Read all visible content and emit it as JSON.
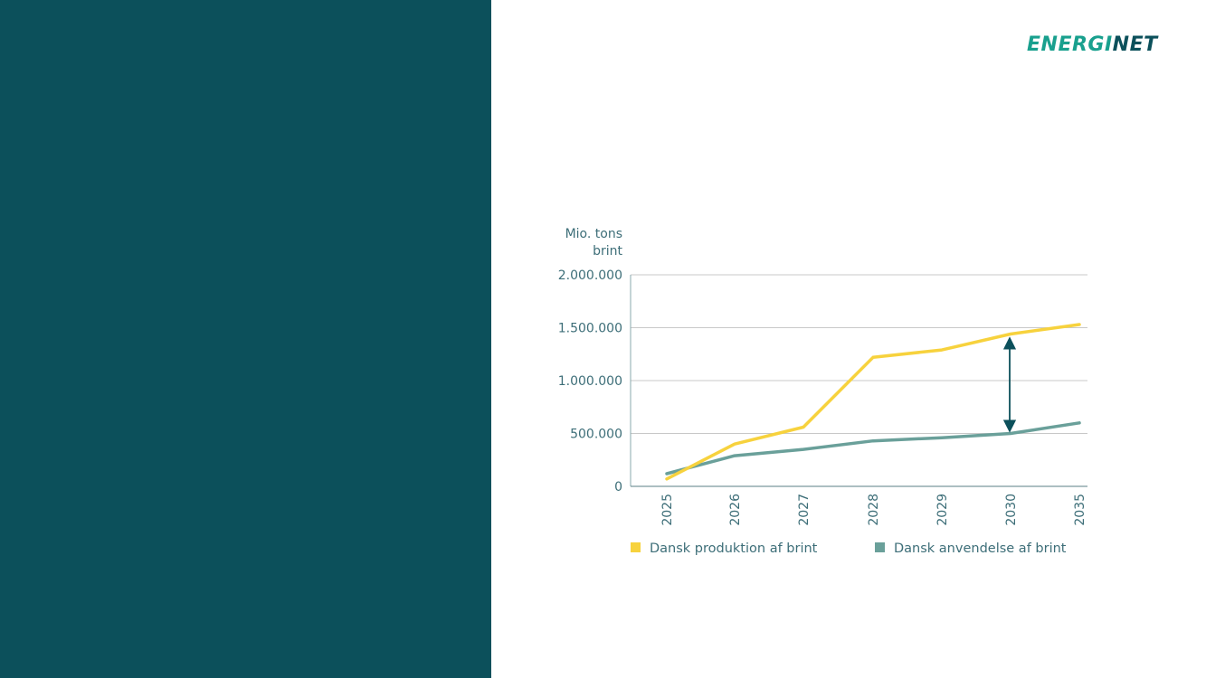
{
  "brand": {
    "logo_text_a": "ENERGI",
    "logo_text_b": "NET"
  },
  "colors": {
    "panel": "#0c505b",
    "accent": "#19a08e",
    "production": "#f7d23d",
    "usage": "#6aa09a",
    "arrow": "#0c505b",
    "grid": "#c8c8c8",
    "text": "#3d6e78"
  },
  "chart_data": {
    "type": "line",
    "title": "",
    "ylabel_line1": "Mio. tons",
    "ylabel_line2": "brint",
    "xlabel": "",
    "ylim": [
      0,
      2000000
    ],
    "y_ticks": [
      0,
      500000,
      1000000,
      1500000,
      2000000
    ],
    "y_tick_labels": [
      "0",
      "500.000",
      "1.000.000",
      "1.500.000",
      "2.000.000"
    ],
    "categories": [
      "2025",
      "2026",
      "2027",
      "2028",
      "2029",
      "2030",
      "2035"
    ],
    "series": [
      {
        "name": "Dansk produktion af brint",
        "color": "#f7d23d",
        "values": [
          70000,
          400000,
          560000,
          1220000,
          1290000,
          1440000,
          1530000
        ]
      },
      {
        "name": "Dansk anvendelse af brint",
        "color": "#6aa09a",
        "values": [
          120000,
          290000,
          350000,
          430000,
          460000,
          500000,
          600000
        ]
      }
    ],
    "annotation": {
      "type": "double-arrow",
      "category": "2030",
      "from": 500000,
      "to": 1440000
    },
    "grid": true,
    "legend_position": "bottom"
  }
}
